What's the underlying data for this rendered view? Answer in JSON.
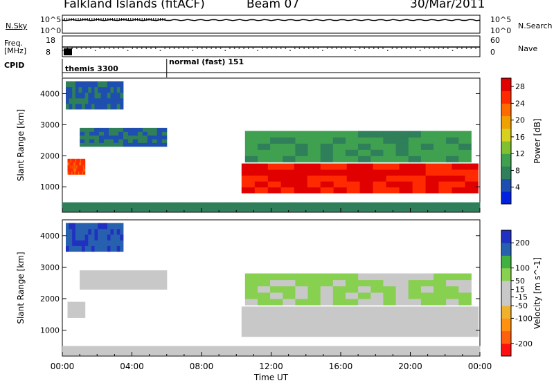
{
  "header": {
    "title": "Falkland Islands (fitACF)",
    "beam": "Beam 07",
    "date": "30/Mar/2011"
  },
  "status_panels": {
    "nsky_label": "N.Sky",
    "nsearch_label": "N.Search",
    "nsky_ticks": [
      "10^5",
      "10^0"
    ],
    "nsearch_ticks": [
      "10^5",
      "10^0"
    ],
    "freq_label_1": "Freq.",
    "freq_label_2": "[MHz]",
    "freq_ticks": [
      "18",
      "8"
    ],
    "nave_label": "Nave",
    "nave_ticks": [
      "60",
      "0"
    ],
    "cpid_label": "CPID",
    "cpid_segments": [
      {
        "name": "themis 3300",
        "start_hour": 0,
        "end_hour": 6
      },
      {
        "name": "normal (fast) 151",
        "start_hour": 6,
        "end_hour": 24
      }
    ]
  },
  "colors": {
    "power": [
      "#0020e0",
      "#1e4fb0",
      "#2e7f5a",
      "#3fa050",
      "#7fc030",
      "#d8d020",
      "#f0a000",
      "#ff6a00",
      "#ff2a00",
      "#e00000"
    ],
    "velocity": [
      "#ff1010",
      "#ff6010",
      "#ff9010",
      "#f0b030",
      "#c8c8c8",
      "#c8c8c8",
      "#88d050",
      "#40b040",
      "#2860b0",
      "#2030c0"
    ]
  },
  "chart_data": [
    {
      "type": "heatmap",
      "panel": "power",
      "x_label": "Time UT",
      "x_ticks": [
        "00:00",
        "04:00",
        "08:00",
        "12:00",
        "16:00",
        "20:00",
        "00:00"
      ],
      "xlim": [
        0,
        24
      ],
      "ylabel": "Slant Range [km]",
      "y_ticks": [
        1000,
        2000,
        3000,
        4000
      ],
      "ylim": [
        180,
        4500
      ],
      "colorbar_label": "Power [dB]",
      "colorbar_ticks": [
        4,
        8,
        12,
        16,
        20,
        24,
        28
      ],
      "colorbar_range": [
        0,
        30
      ],
      "regions": [
        {
          "t": [
            10.3,
            23.9
          ],
          "r": [
            800,
            1750
          ],
          "value": 27
        },
        {
          "t": [
            0.3,
            1.3
          ],
          "r": [
            1400,
            1900
          ],
          "value": 25
        },
        {
          "t": [
            1.0,
            6.0
          ],
          "r": [
            2300,
            2900
          ],
          "value": 6
        },
        {
          "t": [
            0.2,
            3.5
          ],
          "r": [
            3500,
            4400
          ],
          "value": 5
        },
        {
          "t": [
            10.5,
            23.5
          ],
          "r": [
            1800,
            2800
          ],
          "value": 10
        },
        {
          "t": [
            0,
            24
          ],
          "r": [
            200,
            500
          ],
          "value": 6
        }
      ]
    },
    {
      "type": "heatmap",
      "panel": "velocity",
      "x_label": "Time UT",
      "x_ticks": [
        "00:00",
        "04:00",
        "08:00",
        "12:00",
        "16:00",
        "20:00",
        "00:00"
      ],
      "xlim": [
        0,
        24
      ],
      "ylabel": "Slant Range [km]",
      "y_ticks": [
        1000,
        2000,
        3000,
        4000
      ],
      "ylim": [
        180,
        4500
      ],
      "colorbar_label": "Velocity [m s^-1]",
      "colorbar_ticks": [
        -200,
        -100,
        -50,
        -15,
        15,
        50,
        100,
        200
      ],
      "colorbar_range": [
        -250,
        250
      ],
      "regions": [
        {
          "t": [
            10.3,
            23.9
          ],
          "r": [
            800,
            1750
          ],
          "value": 0
        },
        {
          "t": [
            0.3,
            1.3
          ],
          "r": [
            1400,
            1900
          ],
          "value": 0
        },
        {
          "t": [
            1.0,
            6.0
          ],
          "r": [
            2300,
            2900
          ],
          "value": 0
        },
        {
          "t": [
            0.2,
            3.5
          ],
          "r": [
            3500,
            4400
          ],
          "value": 180
        },
        {
          "t": [
            10.5,
            23.5
          ],
          "r": [
            1800,
            2800
          ],
          "value": 60
        },
        {
          "t": [
            0,
            24
          ],
          "r": [
            200,
            500
          ],
          "value": -40
        }
      ]
    }
  ]
}
